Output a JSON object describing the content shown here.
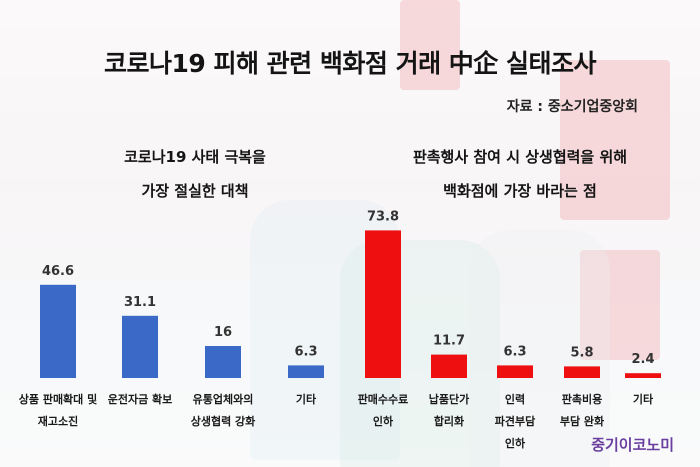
{
  "page": {
    "title": "코로나19 피해 관련 백화점 거래 中企 실태조사",
    "source": "자료 : 중소기업중앙회",
    "watermark": "중기이코노미"
  },
  "colors": {
    "left_series": "#3a69c8",
    "right_series": "#ee1010"
  },
  "chart_data": [
    {
      "type": "bar",
      "title_lines": [
        "코로나19 사태 극복을",
        "가장 절실한 대책"
      ],
      "categories": [
        [
          "상품 판매확대 및",
          "재고소진"
        ],
        [
          "운전자금 확보"
        ],
        [
          "유통업체와의",
          "상생협력 강화"
        ],
        [
          "기타"
        ]
      ],
      "values": [
        46.6,
        31.1,
        16,
        6.3
      ],
      "data_labels": [
        "46.6",
        "31.1",
        "16",
        "6.3"
      ],
      "color": "#3a69c8"
    },
    {
      "type": "bar",
      "title_lines": [
        "판촉행사 참여 시 상생협력을 위해",
        "백화점에 가장 바라는 점"
      ],
      "categories": [
        [
          "판매수수료",
          "인하"
        ],
        [
          "납품단가",
          "합리화"
        ],
        [
          "인력",
          "파견부담",
          "인하"
        ],
        [
          "판촉비용",
          "부담 완화"
        ],
        [
          "기타"
        ]
      ],
      "values": [
        73.8,
        11.7,
        6.3,
        5.8,
        2.4
      ],
      "data_labels": [
        "73.8",
        "11.7",
        "6.3",
        "5.8",
        "2.4"
      ],
      "color": "#ee1010"
    }
  ]
}
